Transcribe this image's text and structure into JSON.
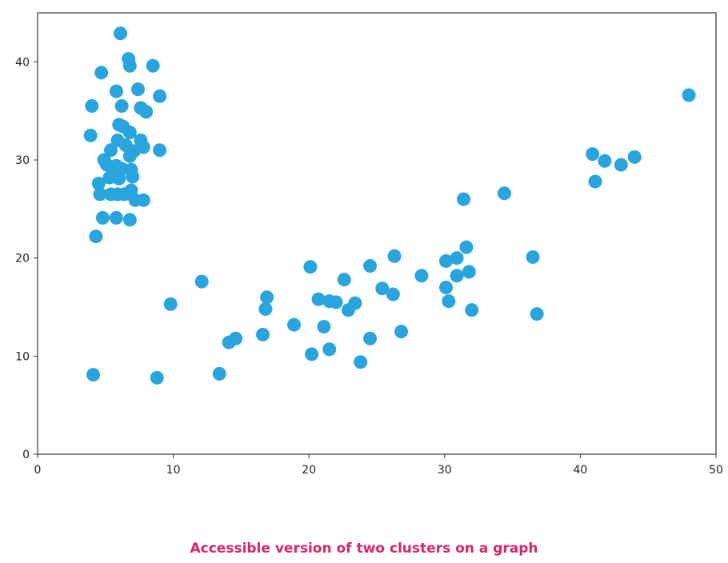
{
  "colors": {
    "point": "#29a4dd",
    "axis": "#333333",
    "caption": "#d6246e"
  },
  "caption": {
    "text": "Accessible version of two clusters on a graph"
  },
  "chart_data": {
    "type": "scatter",
    "title": "",
    "xlabel": "",
    "ylabel": "",
    "xlim": [
      0,
      50
    ],
    "ylim": [
      0,
      45
    ],
    "x_ticks": [
      "0",
      "10",
      "20",
      "30",
      "40",
      "50"
    ],
    "y_ticks": [
      "0",
      "10",
      "20",
      "30",
      "40"
    ],
    "grid": false,
    "series": [
      {
        "points": [
          [
            6.1,
            42.9
          ],
          [
            6.7,
            40.3
          ],
          [
            6.8,
            39.6
          ],
          [
            8.5,
            39.6
          ],
          [
            4.7,
            38.9
          ],
          [
            5.8,
            37.0
          ],
          [
            7.4,
            37.2
          ],
          [
            9.0,
            36.5
          ],
          [
            4.0,
            35.5
          ],
          [
            6.2,
            35.5
          ],
          [
            7.6,
            35.3
          ],
          [
            8.0,
            34.9
          ],
          [
            6.0,
            33.6
          ],
          [
            6.3,
            33.4
          ],
          [
            6.8,
            32.8
          ],
          [
            3.9,
            32.5
          ],
          [
            5.9,
            32.0
          ],
          [
            6.5,
            31.5
          ],
          [
            7.6,
            32.0
          ],
          [
            7.8,
            31.3
          ],
          [
            9.0,
            31.0
          ],
          [
            5.4,
            31.0
          ],
          [
            7.1,
            30.9
          ],
          [
            6.8,
            30.4
          ],
          [
            4.9,
            30.0
          ],
          [
            5.1,
            29.5
          ],
          [
            5.8,
            29.4
          ],
          [
            6.2,
            29.1
          ],
          [
            6.9,
            29.0
          ],
          [
            5.6,
            28.6
          ],
          [
            5.3,
            28.2
          ],
          [
            6.0,
            28.1
          ],
          [
            7.0,
            28.3
          ],
          [
            4.5,
            27.6
          ],
          [
            4.6,
            26.5
          ],
          [
            5.4,
            26.5
          ],
          [
            5.9,
            26.5
          ],
          [
            6.4,
            26.5
          ],
          [
            6.9,
            26.9
          ],
          [
            7.2,
            25.9
          ],
          [
            7.8,
            25.9
          ],
          [
            4.8,
            24.1
          ],
          [
            5.8,
            24.1
          ],
          [
            6.8,
            23.9
          ],
          [
            4.3,
            22.2
          ],
          [
            4.1,
            8.1
          ],
          [
            8.8,
            7.8
          ],
          [
            9.8,
            15.3
          ],
          [
            12.1,
            17.6
          ],
          [
            13.4,
            8.2
          ],
          [
            14.1,
            11.4
          ],
          [
            14.6,
            11.8
          ],
          [
            16.6,
            12.2
          ],
          [
            16.8,
            14.8
          ],
          [
            16.9,
            16.0
          ],
          [
            18.9,
            13.2
          ],
          [
            20.1,
            19.1
          ],
          [
            20.2,
            10.2
          ],
          [
            20.7,
            15.8
          ],
          [
            21.1,
            13.0
          ],
          [
            21.5,
            15.6
          ],
          [
            21.5,
            10.7
          ],
          [
            22.0,
            15.5
          ],
          [
            22.6,
            17.8
          ],
          [
            22.9,
            14.7
          ],
          [
            23.4,
            15.4
          ],
          [
            23.8,
            9.4
          ],
          [
            24.5,
            19.2
          ],
          [
            24.5,
            11.8
          ],
          [
            25.4,
            16.9
          ],
          [
            26.2,
            16.3
          ],
          [
            26.3,
            20.2
          ],
          [
            26.8,
            12.5
          ],
          [
            28.3,
            18.2
          ],
          [
            30.1,
            19.7
          ],
          [
            30.1,
            17.0
          ],
          [
            30.3,
            15.6
          ],
          [
            30.9,
            20.0
          ],
          [
            30.9,
            18.2
          ],
          [
            31.4,
            26.0
          ],
          [
            31.6,
            21.1
          ],
          [
            31.8,
            18.6
          ],
          [
            32.0,
            14.7
          ],
          [
            34.4,
            26.6
          ],
          [
            36.5,
            20.1
          ],
          [
            36.8,
            14.3
          ],
          [
            40.9,
            30.6
          ],
          [
            41.1,
            27.8
          ],
          [
            41.8,
            29.9
          ],
          [
            43.0,
            29.5
          ],
          [
            44.0,
            30.3
          ],
          [
            48.0,
            36.6
          ]
        ]
      }
    ]
  }
}
